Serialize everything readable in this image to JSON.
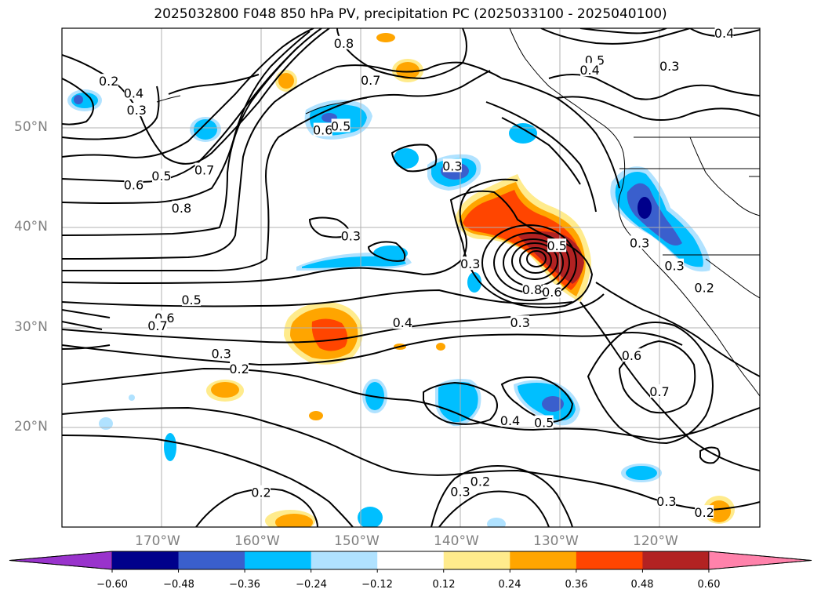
{
  "title": "2025032800 F048 850 hPa PV, precipitation PC (2025033100 - 2025040100)",
  "lat_labels": [
    "50°N",
    "40°N",
    "30°N",
    "20°N"
  ],
  "lon_labels": [
    "170°W",
    "160°W",
    "150°W",
    "140°W",
    "130°W",
    "120°W"
  ],
  "colorbar": {
    "ticks": [
      "−0.60",
      "−0.48",
      "−0.36",
      "−0.24",
      "−0.12",
      "0.12",
      "0.24",
      "0.36",
      "0.48",
      "0.60"
    ],
    "colors": [
      "#9933cc",
      "#00008b",
      "#3a5fcd",
      "#00bfff",
      "#b0e2ff",
      "#ffffff",
      "#ffeb8c",
      "#ffa500",
      "#ff4500",
      "#b22222",
      "#ff82ab"
    ]
  },
  "contour_labels": [
    {
      "text": "0.5",
      "lat": 56.8,
      "lon": -126.5
    },
    {
      "text": "0.4",
      "lat": 55.8,
      "lon": -127.0
    },
    {
      "text": "0.3",
      "lat": 56.2,
      "lon": -119.0
    },
    {
      "text": "0.4",
      "lat": 59.5,
      "lon": -113.5
    },
    {
      "text": "0.2",
      "lat": 54.7,
      "lon": -175.3
    },
    {
      "text": "0.4",
      "lat": 53.5,
      "lon": -172.8
    },
    {
      "text": "0.3",
      "lat": 51.8,
      "lon": -172.5
    },
    {
      "text": "0.8",
      "lat": 58.5,
      "lon": -151.7
    },
    {
      "text": "0.7",
      "lat": 54.8,
      "lon": -149.0
    },
    {
      "text": "0.6",
      "lat": 49.8,
      "lon": -153.8
    },
    {
      "text": "0.5",
      "lat": 50.2,
      "lon": -152.0
    },
    {
      "text": "0.3",
      "lat": 46.2,
      "lon": -140.8
    },
    {
      "text": "0.5",
      "lat": 45.2,
      "lon": -170.0
    },
    {
      "text": "0.6",
      "lat": 44.3,
      "lon": -172.8
    },
    {
      "text": "0.7",
      "lat": 45.8,
      "lon": -165.7
    },
    {
      "text": "0.8",
      "lat": 42.0,
      "lon": -168.0
    },
    {
      "text": "0.3",
      "lat": 39.2,
      "lon": -151.0
    },
    {
      "text": "0.3",
      "lat": 36.4,
      "lon": -139.0
    },
    {
      "text": "0.5",
      "lat": 38.2,
      "lon": -130.3
    },
    {
      "text": "0.8",
      "lat": 33.8,
      "lon": -132.8
    },
    {
      "text": "0.6",
      "lat": 33.6,
      "lon": -130.8
    },
    {
      "text": "0.3",
      "lat": 38.5,
      "lon": -122.0
    },
    {
      "text": "0.3",
      "lat": 36.2,
      "lon": -118.5
    },
    {
      "text": "0.2",
      "lat": 34.0,
      "lon": -115.5
    },
    {
      "text": "0.5",
      "lat": 32.8,
      "lon": -167.0
    },
    {
      "text": "0.6",
      "lat": 31.0,
      "lon": -169.7
    },
    {
      "text": "0.7",
      "lat": 30.2,
      "lon": -170.4
    },
    {
      "text": "0.4",
      "lat": 30.5,
      "lon": -145.8
    },
    {
      "text": "0.3",
      "lat": 30.5,
      "lon": -134.0
    },
    {
      "text": "0.3",
      "lat": 27.4,
      "lon": -164.0
    },
    {
      "text": "0.2",
      "lat": 25.9,
      "lon": -162.2
    },
    {
      "text": "0.6",
      "lat": 27.2,
      "lon": -122.8
    },
    {
      "text": "0.7",
      "lat": 23.6,
      "lon": -120.0
    },
    {
      "text": "0.4",
      "lat": 20.7,
      "lon": -135.0
    },
    {
      "text": "0.5",
      "lat": 20.5,
      "lon": -131.6
    },
    {
      "text": "0.2",
      "lat": 14.6,
      "lon": -138.0
    },
    {
      "text": "0.3",
      "lat": 13.6,
      "lon": -140.0
    },
    {
      "text": "0.2",
      "lat": 13.5,
      "lon": -160.0
    },
    {
      "text": "0.3",
      "lat": 12.6,
      "lon": -119.3
    },
    {
      "text": "0.2",
      "lat": 11.5,
      "lon": -115.5
    }
  ]
}
